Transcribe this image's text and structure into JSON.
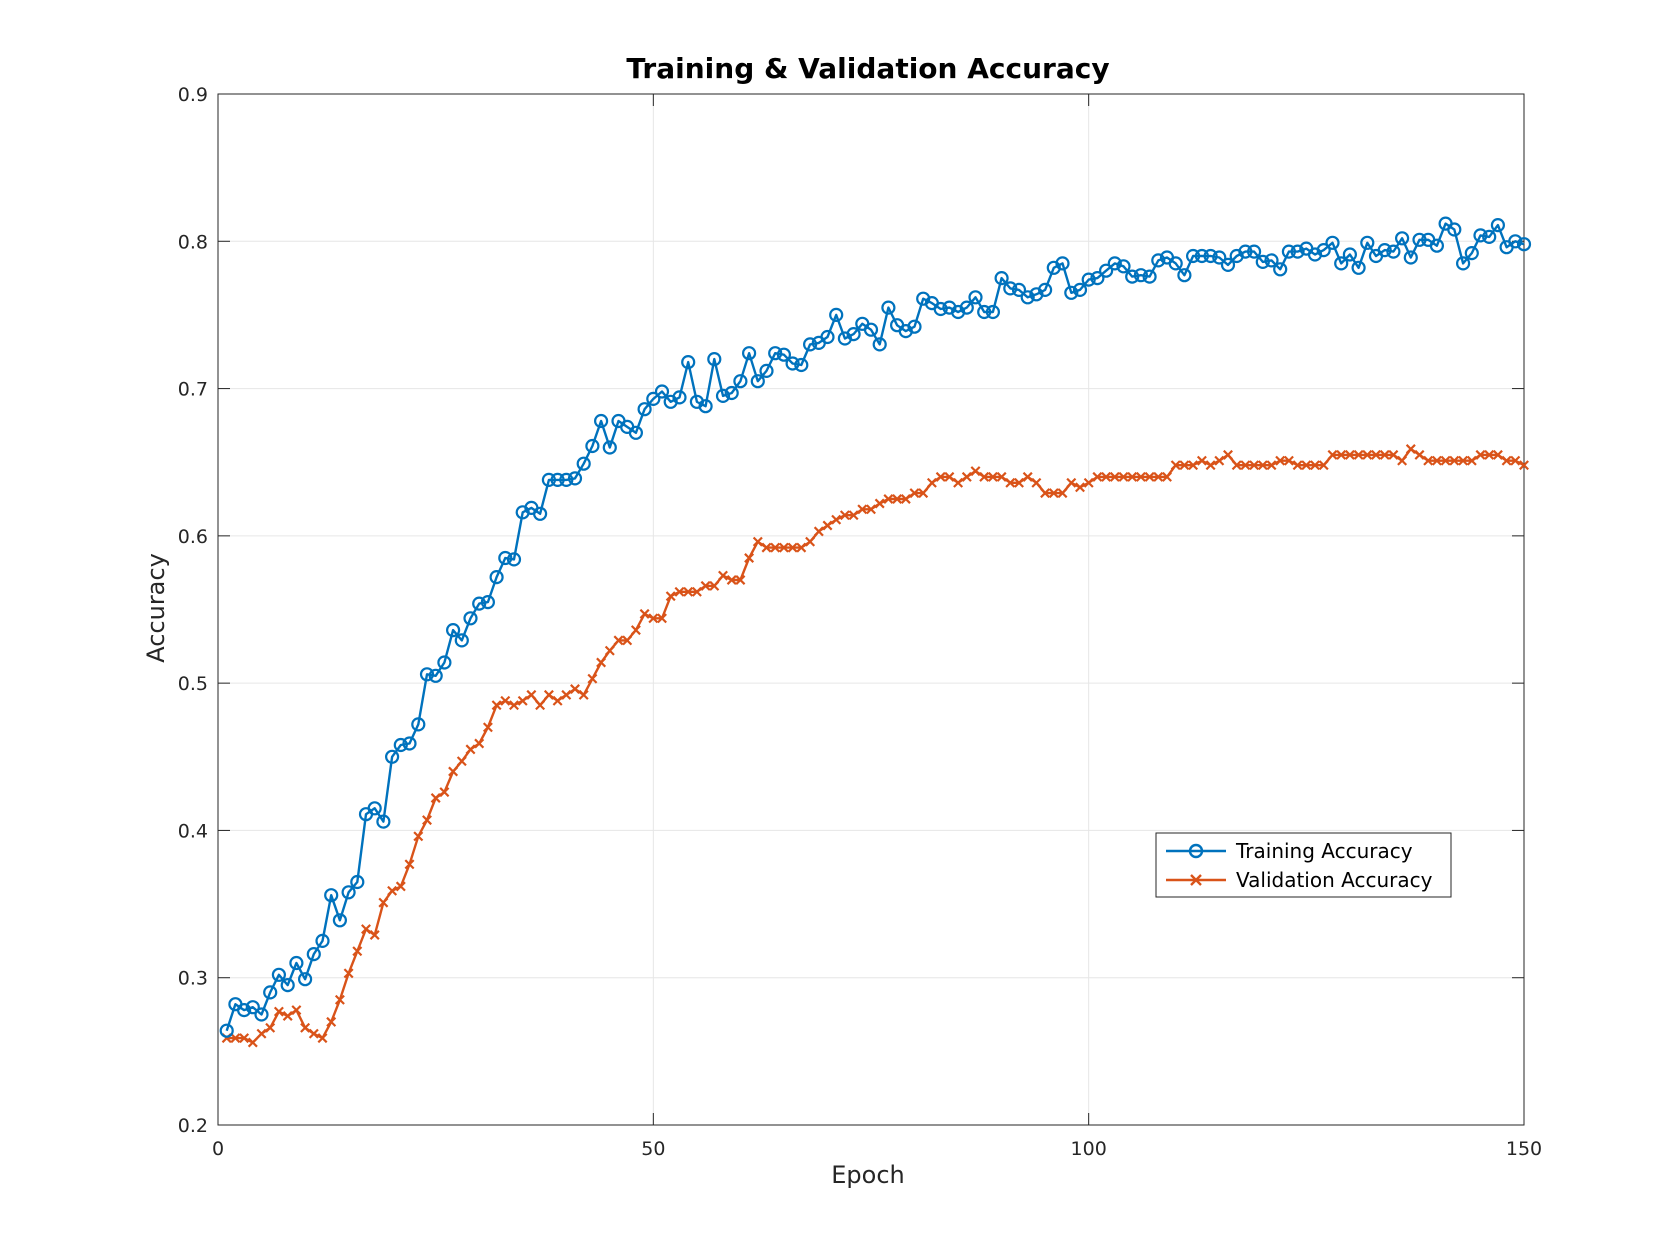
{
  "chart_data": {
    "type": "line",
    "title": "Training & Validation Accuracy",
    "xlabel": "Epoch",
    "ylabel": "Accuracy",
    "xlim": [
      0,
      150
    ],
    "ylim": [
      0.2,
      0.9
    ],
    "xticks": [
      0,
      50,
      100,
      150
    ],
    "xtick_labels": [
      "0",
      "50",
      "100",
      "150"
    ],
    "yticks": [
      0.2,
      0.3,
      0.4,
      0.5,
      0.6,
      0.7,
      0.8,
      0.9
    ],
    "ytick_labels": [
      "0.2",
      "0.3",
      "0.4",
      "0.5",
      "0.6",
      "0.7",
      "0.8",
      "0.9"
    ],
    "grid": true,
    "legend_position": "lower-right",
    "series": [
      {
        "name": "Training Accuracy",
        "color": "#0072BD",
        "marker": "circle",
        "x": [
          1,
          2,
          3,
          4,
          5,
          6,
          7,
          8,
          9,
          10,
          11,
          12,
          13,
          14,
          15,
          16,
          17,
          18,
          19,
          20,
          21,
          22,
          23,
          24,
          25,
          26,
          27,
          28,
          29,
          30,
          31,
          32,
          33,
          34,
          35,
          36,
          37,
          38,
          39,
          40,
          41,
          42,
          43,
          44,
          45,
          46,
          47,
          48,
          49,
          50,
          51,
          52,
          53,
          54,
          55,
          56,
          57,
          58,
          59,
          60,
          61,
          62,
          63,
          64,
          65,
          66,
          67,
          68,
          69,
          70,
          71,
          72,
          73,
          74,
          75,
          76,
          77,
          78,
          79,
          80,
          81,
          82,
          83,
          84,
          85,
          86,
          87,
          88,
          89,
          90,
          91,
          92,
          93,
          94,
          95,
          96,
          97,
          98,
          99,
          100,
          101,
          102,
          103,
          104,
          105,
          106,
          107,
          108,
          109,
          110,
          111,
          112,
          113,
          114,
          115,
          116,
          117,
          118,
          119,
          120,
          121,
          122,
          123,
          124,
          125,
          126,
          127,
          128,
          129,
          130,
          131,
          132,
          133,
          134,
          135,
          136,
          137,
          138,
          139,
          140,
          141,
          142,
          143,
          144,
          145,
          146,
          147,
          148,
          149,
          150
        ],
        "values": [
          0.264,
          0.282,
          0.278,
          0.28,
          0.275,
          0.29,
          0.302,
          0.295,
          0.31,
          0.299,
          0.316,
          0.325,
          0.356,
          0.339,
          0.358,
          0.365,
          0.411,
          0.415,
          0.406,
          0.45,
          0.458,
          0.459,
          0.472,
          0.506,
          0.505,
          0.514,
          0.536,
          0.529,
          0.544,
          0.554,
          0.555,
          0.572,
          0.585,
          0.584,
          0.616,
          0.619,
          0.615,
          0.638,
          0.638,
          0.638,
          0.639,
          0.649,
          0.661,
          0.678,
          0.66,
          0.678,
          0.674,
          0.67,
          0.686,
          0.693,
          0.698,
          0.691,
          0.694,
          0.718,
          0.691,
          0.688,
          0.72,
          0.695,
          0.697,
          0.705,
          0.724,
          0.705,
          0.712,
          0.724,
          0.723,
          0.717,
          0.716,
          0.73,
          0.731,
          0.735,
          0.75,
          0.734,
          0.737,
          0.744,
          0.74,
          0.73,
          0.755,
          0.743,
          0.739,
          0.742,
          0.761,
          0.758,
          0.754,
          0.755,
          0.752,
          0.755,
          0.762,
          0.752,
          0.752,
          0.775,
          0.768,
          0.767,
          0.762,
          0.764,
          0.767,
          0.782,
          0.785,
          0.765,
          0.767,
          0.774,
          0.775,
          0.78,
          0.785,
          0.783,
          0.776,
          0.777,
          0.776,
          0.787,
          0.789,
          0.785,
          0.777,
          0.79,
          0.79,
          0.79,
          0.789,
          0.784,
          0.79,
          0.793,
          0.793,
          0.786,
          0.787,
          0.781,
          0.793,
          0.793,
          0.795,
          0.791,
          0.794,
          0.799,
          0.785,
          0.791,
          0.782,
          0.799,
          0.79,
          0.794,
          0.793,
          0.802,
          0.789,
          0.801,
          0.801,
          0.797,
          0.812,
          0.808,
          0.785,
          0.792,
          0.804,
          0.803,
          0.811,
          0.796,
          0.8,
          0.798
        ]
      },
      {
        "name": "Validation Accuracy",
        "color": "#D95319",
        "marker": "x",
        "x": [
          1,
          2,
          3,
          4,
          5,
          6,
          7,
          8,
          9,
          10,
          11,
          12,
          13,
          14,
          15,
          16,
          17,
          18,
          19,
          20,
          21,
          22,
          23,
          24,
          25,
          26,
          27,
          28,
          29,
          30,
          31,
          32,
          33,
          34,
          35,
          36,
          37,
          38,
          39,
          40,
          41,
          42,
          43,
          44,
          45,
          46,
          47,
          48,
          49,
          50,
          51,
          52,
          53,
          54,
          55,
          56,
          57,
          58,
          59,
          60,
          61,
          62,
          63,
          64,
          65,
          66,
          67,
          68,
          69,
          70,
          71,
          72,
          73,
          74,
          75,
          76,
          77,
          78,
          79,
          80,
          81,
          82,
          83,
          84,
          85,
          86,
          87,
          88,
          89,
          90,
          91,
          92,
          93,
          94,
          95,
          96,
          97,
          98,
          99,
          100,
          101,
          102,
          103,
          104,
          105,
          106,
          107,
          108,
          109,
          110,
          111,
          112,
          113,
          114,
          115,
          116,
          117,
          118,
          119,
          120,
          121,
          122,
          123,
          124,
          125,
          126,
          127,
          128,
          129,
          130,
          131,
          132,
          133,
          134,
          135,
          136,
          137,
          138,
          139,
          140,
          141,
          142,
          143,
          144,
          145,
          146,
          147,
          148,
          149,
          150
        ],
        "values": [
          0.259,
          0.259,
          0.259,
          0.256,
          0.262,
          0.266,
          0.277,
          0.274,
          0.278,
          0.266,
          0.262,
          0.259,
          0.27,
          0.285,
          0.303,
          0.318,
          0.333,
          0.329,
          0.351,
          0.359,
          0.362,
          0.377,
          0.396,
          0.407,
          0.422,
          0.426,
          0.44,
          0.447,
          0.455,
          0.459,
          0.47,
          0.485,
          0.488,
          0.485,
          0.488,
          0.492,
          0.485,
          0.492,
          0.488,
          0.492,
          0.496,
          0.492,
          0.503,
          0.514,
          0.522,
          0.529,
          0.529,
          0.536,
          0.547,
          0.544,
          0.544,
          0.559,
          0.562,
          0.562,
          0.562,
          0.566,
          0.566,
          0.573,
          0.57,
          0.57,
          0.585,
          0.596,
          0.592,
          0.592,
          0.592,
          0.592,
          0.592,
          0.596,
          0.603,
          0.607,
          0.611,
          0.614,
          0.614,
          0.618,
          0.618,
          0.622,
          0.625,
          0.625,
          0.625,
          0.629,
          0.629,
          0.636,
          0.64,
          0.64,
          0.636,
          0.64,
          0.644,
          0.64,
          0.64,
          0.64,
          0.636,
          0.636,
          0.64,
          0.636,
          0.629,
          0.629,
          0.629,
          0.636,
          0.633,
          0.636,
          0.64,
          0.64,
          0.64,
          0.64,
          0.64,
          0.64,
          0.64,
          0.64,
          0.64,
          0.648,
          0.648,
          0.648,
          0.651,
          0.648,
          0.651,
          0.655,
          0.648,
          0.648,
          0.648,
          0.648,
          0.648,
          0.651,
          0.651,
          0.648,
          0.648,
          0.648,
          0.648,
          0.655,
          0.655,
          0.655,
          0.655,
          0.655,
          0.655,
          0.655,
          0.655,
          0.651,
          0.659,
          0.655,
          0.651,
          0.651,
          0.651,
          0.651,
          0.651,
          0.651,
          0.655,
          0.655,
          0.655,
          0.651,
          0.651,
          0.648
        ]
      }
    ]
  }
}
